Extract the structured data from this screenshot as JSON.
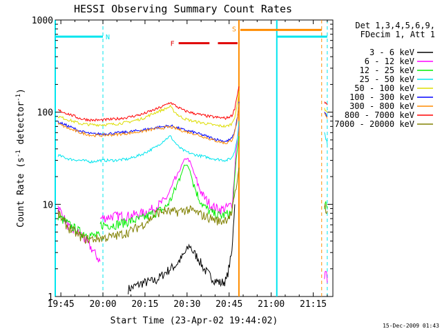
{
  "chart_data": {
    "type": "line",
    "title": "HESSI Observing Summary Count Rates",
    "xlabel": "Start Time (23-Apr-02 19:44:02)",
    "ylabel_main": "Count Rate (s",
    "ylabel_sup1": "-1",
    "ylabel_mid": " detector",
    "ylabel_sup2": "-1",
    "ylabel_end": ")",
    "y_scale": "log",
    "ylim": [
      1,
      1000
    ],
    "x_ticks": [
      "19:45",
      "20:00",
      "20:15",
      "20:30",
      "20:45",
      "21:00",
      "21:15"
    ],
    "x_tick_minutes": [
      1,
      16,
      31,
      46,
      61,
      76,
      91
    ],
    "x_range_minutes": [
      -1,
      98
    ],
    "y_ticks": [
      "1",
      "10",
      "100",
      "1000"
    ],
    "y_tick_values": [
      1,
      10,
      100,
      1000
    ],
    "legend_header": [
      "Det 1,3,4,5,6,9,",
      "FDecim 1, Att 1"
    ],
    "timestamp": "15-Dec-2009 01:43",
    "flags": {
      "night_label": "N",
      "flare_label": "F",
      "saa_label": "S",
      "night_color": "#00e5ee",
      "flare_color": "#e00000",
      "saa_color": "#ff8c00",
      "night_bar": [
        [
          -1,
          16
        ],
        [
          78,
          96
        ]
      ],
      "flare_bar": [
        [
          43,
          54
        ],
        [
          57,
          64
        ]
      ],
      "saa_bar": [
        [
          65,
          94
        ]
      ],
      "night_level": 660,
      "flare_level": 560,
      "saa_level": 780,
      "night_solid_lines": [
        -1,
        78
      ],
      "night_dashed_lines": [
        16,
        96
      ],
      "saa_solid_lines": [
        64.5
      ],
      "saa_dashed_lines": [
        94
      ]
    },
    "series": [
      {
        "name": "3 - 6 keV",
        "color": "#000000",
        "segments": [
          {
            "x": [
              25,
              30,
              35,
              38,
              40,
              42,
              44,
              46,
              47,
              48,
              50,
              52,
              54,
              56,
              58,
              60,
              62,
              62.5,
              63
            ],
            "y": [
              1.2,
              1.4,
              1.5,
              1.8,
              2.0,
              2.2,
              2.6,
              3.2,
              3.6,
              3.1,
              2.6,
              2.0,
              1.7,
              1.5,
              1.4,
              1.5,
              3,
              6,
              10
            ]
          }
        ]
      },
      {
        "name": "6 - 12 keV",
        "color": "#ff00ff",
        "segments": [
          {
            "x": [
              0,
              4,
              8,
              12,
              15
            ],
            "y": [
              9.5,
              5.5,
              4.8,
              3.3,
              2.4
            ]
          },
          {
            "x": [
              15,
              20,
              25,
              30,
              34,
              38,
              40,
              42,
              44,
              45,
              46,
              47,
              48,
              50,
              52,
              55,
              58,
              60,
              62,
              62.5,
              63.5,
              64.5
            ],
            "y": [
              7,
              7.5,
              7.5,
              8,
              9,
              11,
              14,
              19,
              26,
              30,
              32,
              29,
              24,
              16,
              12,
              9.5,
              8.8,
              9.2,
              10,
              14,
              40,
              70
            ]
          },
          {
            "x": [
              95,
              95.5,
              96
            ],
            "y": [
              1.5,
              2.0,
              1.4
            ]
          }
        ]
      },
      {
        "name": "12 - 25 keV",
        "color": "#00ee00",
        "segments": [
          {
            "x": [
              0,
              4,
              8,
              12,
              15
            ],
            "y": [
              7.5,
              6.0,
              5.0,
              4.6,
              4.5
            ]
          },
          {
            "x": [
              15,
              20,
              25,
              30,
              34,
              38,
              40,
              42,
              44,
              45,
              46,
              47,
              48,
              50,
              52,
              55,
              58,
              60,
              62,
              62.5,
              63.5,
              64.5
            ],
            "y": [
              6,
              6,
              6.5,
              7,
              8,
              9,
              11,
              15,
              22,
              26,
              27,
              24,
              18,
              12,
              9.5,
              8,
              7.5,
              7.8,
              8,
              12,
              30,
              55
            ]
          },
          {
            "x": [
              95,
              95.5,
              96
            ],
            "y": [
              9.5,
              10.5,
              9
            ]
          }
        ]
      },
      {
        "name": "25 - 50 keV",
        "color": "#00e5ee",
        "segments": [
          {
            "x": [
              0,
              4,
              8,
              12,
              15,
              20,
              25,
              30,
              35,
              38,
              40,
              41,
              43,
              45,
              48,
              52,
              56,
              60,
              62,
              63,
              64,
              64.5
            ],
            "y": [
              34,
              31,
              30,
              29,
              30,
              30,
              31,
              35,
              42,
              50,
              55,
              50,
              42,
              38,
              35,
              33,
              31,
              30,
              32,
              38,
              55,
              80
            ]
          },
          {
            "x": [
              95,
              95.5,
              96
            ],
            "y": [
              60,
              52,
              45
            ]
          }
        ]
      },
      {
        "name": "50 - 100 keV",
        "color": "#dddd00",
        "segments": [
          {
            "x": [
              0,
              4,
              8,
              12,
              15,
              20,
              25,
              30,
              35,
              38,
              40,
              41,
              43,
              45,
              48,
              52,
              56,
              60,
              62,
              63,
              64,
              64.5
            ],
            "y": [
              90,
              82,
              75,
              73,
              73,
              74,
              78,
              85,
              100,
              108,
              115,
              105,
              92,
              85,
              80,
              76,
              72,
              70,
              75,
              90,
              125,
              170
            ]
          },
          {
            "x": [
              95,
              95.5,
              96
            ],
            "y": [
              110,
              105,
              100
            ]
          }
        ]
      },
      {
        "name": "100 - 300 keV",
        "color": "#0000ff",
        "segments": [
          {
            "x": [
              0,
              4,
              8,
              12,
              15,
              20,
              25,
              30,
              35,
              38,
              40,
              41,
              43,
              45,
              48,
              52,
              56,
              60,
              62,
              63,
              64,
              64.5
            ],
            "y": [
              78,
              70,
              62,
              58,
              58,
              59,
              61,
              64,
              68,
              70,
              71,
              70,
              67,
              64,
              61,
              56,
              51,
              48,
              52,
              62,
              90,
              130
            ]
          },
          {
            "x": [
              95,
              95.5,
              96
            ],
            "y": [
              100,
              95,
              90
            ]
          }
        ]
      },
      {
        "name": "300 - 800 keV",
        "color": "#ff8c00",
        "segments": [
          {
            "x": [
              0,
              4,
              8,
              12,
              15,
              20,
              25,
              30,
              35,
              38,
              40,
              41,
              43,
              45,
              48,
              52,
              56,
              60,
              62,
              63,
              64,
              64.5
            ],
            "y": [
              75,
              66,
              60,
              56,
              56,
              57,
              59,
              62,
              66,
              68,
              69,
              68,
              65,
              62,
              59,
              54,
              49,
              46,
              50,
              60,
              85,
              125
            ]
          },
          {
            "x": [
              95,
              95.5,
              96
            ],
            "y": [
              95,
              90,
              85
            ]
          }
        ]
      },
      {
        "name": "800 - 7000 keV",
        "color": "#ff0000",
        "segments": [
          {
            "x": [
              0,
              4,
              8,
              12,
              15,
              20,
              25,
              30,
              35,
              38,
              40,
              41,
              43,
              45,
              48,
              52,
              56,
              60,
              62,
              63,
              64,
              64.5
            ],
            "y": [
              105,
              95,
              85,
              82,
              82,
              84,
              88,
              95,
              108,
              118,
              128,
              122,
              112,
              104,
              98,
              92,
              88,
              86,
              92,
              110,
              160,
              190
            ]
          },
          {
            "x": [
              95,
              95.5,
              96
            ],
            "y": [
              130,
              125,
              120
            ]
          }
        ]
      },
      {
        "name": "7000 - 20000 keV",
        "color": "#808000",
        "segments": [
          {
            "x": [
              0,
              2,
              4,
              6,
              8,
              10,
              12,
              15,
              20,
              25,
              30,
              33,
              35,
              38,
              40,
              42,
              44,
              46,
              48,
              50,
              52,
              55,
              58,
              60,
              62,
              62.5,
              63.5,
              64.5
            ],
            "y": [
              8,
              6.5,
              5.5,
              5.0,
              4.5,
              4.2,
              4.2,
              4.3,
              4.5,
              5,
              6,
              7,
              8,
              8.5,
              8.3,
              8.3,
              8.5,
              8.8,
              8.5,
              8,
              7.5,
              7,
              6.5,
              7,
              8,
              10,
              15,
              25
            ]
          },
          {
            "x": [
              95,
              95.5,
              96
            ],
            "y": [
              10,
              9,
              8.5
            ]
          }
        ]
      }
    ]
  }
}
